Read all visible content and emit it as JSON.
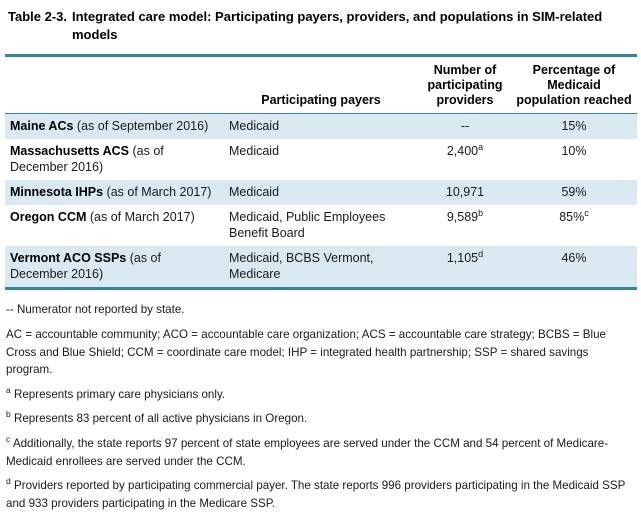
{
  "title": {
    "label": "Table 2-3.",
    "text": "Integrated care model: Participating payers, providers, and populations in SIM-related models"
  },
  "colors": {
    "accent_teal_rule": "#31849B",
    "row_stripe_blue": "#D9E8F1"
  },
  "table": {
    "headers": {
      "model": "",
      "payers": "Participating payers",
      "providers": "Number of participating providers",
      "percentage": "Percentage of Medicaid population reached"
    },
    "rows": [
      {
        "name": "Maine ACs",
        "as_of": " (as of September 2016)",
        "payers": "Medicaid",
        "providers": "--",
        "providers_sup": "",
        "pct": "15%",
        "pct_sup": ""
      },
      {
        "name": "Massachusetts ACS",
        "as_of": " (as of December 2016)",
        "payers": "Medicaid",
        "providers": "2,400",
        "providers_sup": "a",
        "pct": "10%",
        "pct_sup": ""
      },
      {
        "name": "Minnesota IHPs",
        "as_of": " (as of March 2017)",
        "payers": "Medicaid",
        "providers": "10,971",
        "providers_sup": "",
        "pct": "59%",
        "pct_sup": ""
      },
      {
        "name": "Oregon CCM",
        "as_of": " (as of March 2017)",
        "payers": "Medicaid, Public Employees Benefit Board",
        "providers": "9,589",
        "providers_sup": "b",
        "pct": "85%",
        "pct_sup": "c"
      },
      {
        "name": "Vermont ACO SSPs",
        "as_of": " (as of December 2016)",
        "payers": "Medicaid, BCBS Vermont, Medicare",
        "providers": "1,105",
        "providers_sup": "d",
        "pct": "46%",
        "pct_sup": ""
      }
    ]
  },
  "footnotes": [
    {
      "marker": "--",
      "text": "Numerator not reported by state."
    },
    {
      "marker": "",
      "text": "AC = accountable community; ACO = accountable care organization; ACS = accountable care strategy; BCBS = Blue Cross and Blue Shield; CCM = coordinate care model; IHP = integrated health partnership; SSP = shared savings program."
    },
    {
      "marker": "a",
      "text": "Represents primary care physicians only."
    },
    {
      "marker": "b",
      "text": "Represents 83 percent of all active physicians in Oregon."
    },
    {
      "marker": "c",
      "text": "Additionally, the state reports 97 percent of state employees are served under the CCM and 54 percent of Medicare-Medicaid enrollees are served under the CCM."
    },
    {
      "marker": "d",
      "text": "Providers reported by participating commercial payer. The state reports 996 providers participating in the Medicaid SSP and 933 providers participating in the Medicare SSP."
    }
  ]
}
